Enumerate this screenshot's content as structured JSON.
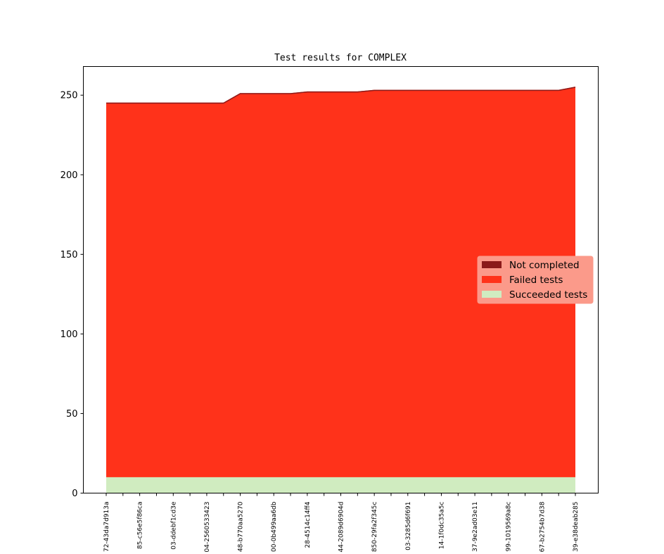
{
  "chart_data": {
    "type": "area",
    "stacked": true,
    "title": "Test results for COMPLEX",
    "xlabel": "",
    "ylabel": "",
    "ylim": [
      0,
      268
    ],
    "yticks": [
      0,
      50,
      100,
      150,
      200,
      250
    ],
    "grid": false,
    "legend_position": "center-right",
    "categories": [
      "72-43da7d913a",
      "",
      "85-c56e5f86ca",
      "",
      "03-ddebf1cd3e",
      "",
      "04-2560533423",
      "",
      "48-b770aa5270",
      "",
      "00-0b499aa6db",
      "",
      "28-4514c14ff4",
      "",
      "44-2089d6904d",
      "",
      "850-29fa2f345c",
      "",
      "03-3285d6f691",
      "",
      "14-1f0dc35a5c",
      "",
      "37-9e2ad03e11",
      "",
      "99-1019569a8c",
      "",
      "67-b2754b7d38",
      "",
      "39-e38deab285"
    ],
    "series": [
      {
        "name": "Succeeded tests",
        "color": "#d0ecc0",
        "values": [
          10,
          10,
          10,
          10,
          10,
          10,
          10,
          10,
          10,
          10,
          10,
          10,
          10,
          10,
          10,
          10,
          10,
          10,
          10,
          10,
          10,
          10,
          10,
          10,
          10,
          10,
          10,
          10,
          10
        ]
      },
      {
        "name": "Failed tests",
        "color": "#ff321a",
        "values": [
          235,
          235,
          235,
          235,
          235,
          235,
          235,
          235,
          241,
          241,
          241,
          241,
          242,
          242,
          242,
          242,
          243,
          243,
          243,
          243,
          243,
          243,
          243,
          243,
          243,
          243,
          243,
          243,
          245
        ]
      },
      {
        "name": "Not completed",
        "color": "#8b1a1a",
        "values": [
          0,
          0,
          0,
          0,
          0,
          0,
          0,
          0,
          0,
          0,
          0,
          0,
          0,
          0,
          0,
          0,
          0,
          0,
          0,
          0,
          0,
          0,
          0,
          0,
          0,
          0,
          0,
          0,
          0
        ]
      }
    ]
  }
}
